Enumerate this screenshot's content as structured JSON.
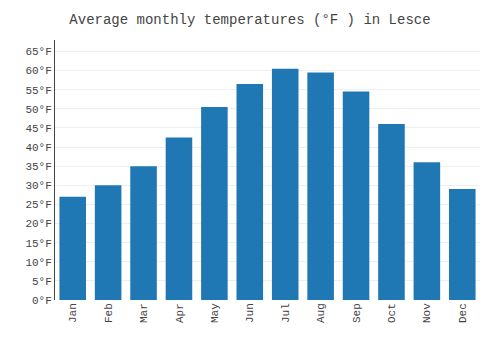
{
  "chart_data": {
    "type": "bar",
    "title": "Average monthly temperatures (°F ) in Lesce",
    "categories": [
      "Jan",
      "Feb",
      "Mar",
      "Apr",
      "May",
      "Jun",
      "Jul",
      "Aug",
      "Sep",
      "Oct",
      "Nov",
      "Dec"
    ],
    "values": [
      27,
      30,
      35,
      42.5,
      50.5,
      56.5,
      60.5,
      59.5,
      54.5,
      46,
      36,
      29
    ],
    "ylim": [
      0,
      68
    ],
    "yticks": [
      {
        "value": 0,
        "label": "0°F"
      },
      {
        "value": 5,
        "label": "5°F"
      },
      {
        "value": 10,
        "label": "10°F"
      },
      {
        "value": 15,
        "label": "15°F"
      },
      {
        "value": 20,
        "label": "20°F"
      },
      {
        "value": 25,
        "label": "25°F"
      },
      {
        "value": 30,
        "label": "30°F"
      },
      {
        "value": 35,
        "label": "35°F"
      },
      {
        "value": 40,
        "label": "40°F"
      },
      {
        "value": 45,
        "label": "45°F"
      },
      {
        "value": 50,
        "label": "50°F"
      },
      {
        "value": 55,
        "label": "55°F"
      },
      {
        "value": 60,
        "label": "60°F"
      },
      {
        "value": 65,
        "label": "65°F"
      }
    ],
    "grid": true
  }
}
